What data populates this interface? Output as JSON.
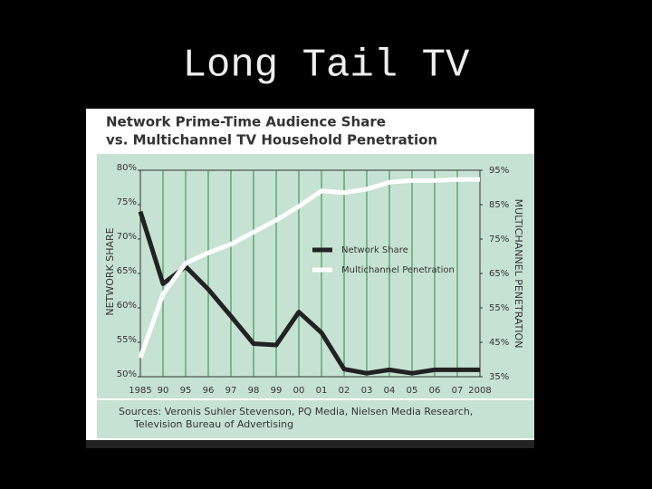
{
  "slide": {
    "title": "Long Tail TV"
  },
  "chart_data": {
    "type": "line",
    "title": "Network Prime-Time Audience Share",
    "subtitle": "vs. Multichannel TV Household Penetration",
    "y_label": "NETWORK SHARE",
    "y2_label": "MULTICHANNEL PENETRATION",
    "categories": [
      "1985",
      "90",
      "95",
      "96",
      "97",
      "98",
      "99",
      "00",
      "01",
      "02",
      "03",
      "04",
      "05",
      "06",
      "07",
      "2008"
    ],
    "series": [
      {
        "name": "Network Share",
        "color": "#222222",
        "values": [
          74,
          63.5,
          66,
          62.7,
          58.8,
          54.8,
          54.6,
          59.4,
          56.4,
          51.1,
          50.5,
          51,
          50.5,
          51,
          51,
          51
        ]
      },
      {
        "name": "Multichannel Penetration",
        "color": "#ffffff",
        "axis": "y2",
        "values": [
          40.5,
          59,
          68,
          71,
          73.5,
          77,
          80.5,
          84.5,
          89,
          88.5,
          89.5,
          91.5,
          92,
          92,
          92.3,
          92.3
        ]
      }
    ],
    "ylim": [
      50,
      80
    ],
    "yticks": [
      {
        "value": 50,
        "label": "50%"
      },
      {
        "value": 55,
        "label": "55%"
      },
      {
        "value": 60,
        "label": "60%"
      },
      {
        "value": 65,
        "label": "65%"
      },
      {
        "value": 70,
        "label": "70%"
      },
      {
        "value": 75,
        "label": "75%"
      },
      {
        "value": 80,
        "label": "80%"
      }
    ],
    "y2lim": [
      35,
      95
    ],
    "y2ticks": [
      {
        "value": 35,
        "label": "35%"
      },
      {
        "value": 45,
        "label": "45%"
      },
      {
        "value": 55,
        "label": "55%"
      },
      {
        "value": 65,
        "label": "65%"
      },
      {
        "value": 75,
        "label": "75%"
      },
      {
        "value": 85,
        "label": "85%"
      },
      {
        "value": 95,
        "label": "95%"
      }
    ],
    "grid": "x",
    "legend": "center",
    "background": "#c6e2d2",
    "source": [
      "Sources: Veronis Suhler Stevenson, PQ Media, Nielsen Media Research,",
      "Television Bureau of Advertising"
    ]
  }
}
